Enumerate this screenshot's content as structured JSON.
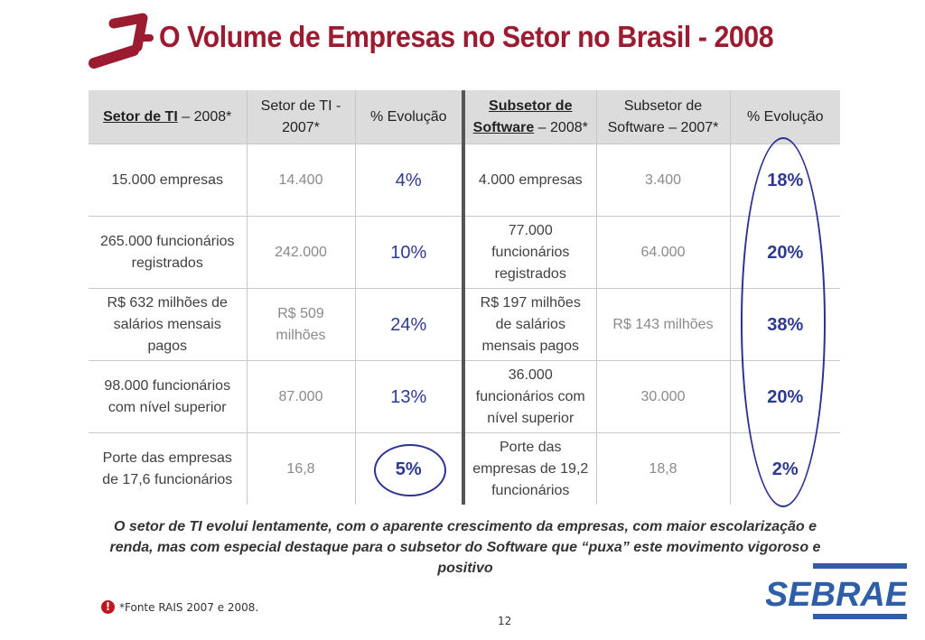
{
  "title": "O Volume de Empresas no Setor no Brasil - 2008",
  "brand": {
    "name": "SEBRAE",
    "color": "#2e5ea8",
    "accent": "#9b1b30",
    "circle_color": "#2e3192"
  },
  "table": {
    "headers": {
      "h1_main": "Setor de TI",
      "h1_rest": " – 2008*",
      "h2": "Setor de TI - 2007*",
      "h3": "% Evolução",
      "h4_main": "Subsetor de Software",
      "h4_rest": " – 2008*",
      "h5": "Subsetor de Software – 2007*",
      "h6": "% Evolução"
    },
    "rows": [
      {
        "c1": "15.000 empresas",
        "c2": "14.400",
        "c3": "4%",
        "c4": "4.000 empresas",
        "c5": "3.400",
        "c6": "18%"
      },
      {
        "c1": "265.000 funcionários registrados",
        "c2": "242.000",
        "c3": "10%",
        "c4": "77.000 funcionários registrados",
        "c5": "64.000",
        "c6": "20%"
      },
      {
        "c1": "R$ 632 milhões de salários mensais pagos",
        "c2": "R$ 509 milhões",
        "c3": "24%",
        "c4": "R$ 197 milhões de salários mensais pagos",
        "c5": "R$ 143 milhões",
        "c6": "38%"
      },
      {
        "c1": "98.000 funcionários com nível superior",
        "c2": "87.000",
        "c3": "13%",
        "c4": "36.000 funcionários com nível superior",
        "c5": "30.000",
        "c6": "20%"
      },
      {
        "c1": "Porte das empresas de 17,6 funcionários",
        "c2": "16,8",
        "c3": "5%",
        "c4": "Porte das empresas de 19,2 funcionários",
        "c5": "18,8",
        "c6": "2%"
      }
    ]
  },
  "note": "O setor de TI evolui lentamente, com o aparente crescimento da empresas, com maior escolarização e renda, mas com especial destaque para o subsetor do Software que “puxa” este movimento vigoroso e positivo",
  "footnote": {
    "icon": "exclamation-icon",
    "mark": "!",
    "text": "*Fonte RAIS 2007 e 2008."
  },
  "page_number": "12"
}
